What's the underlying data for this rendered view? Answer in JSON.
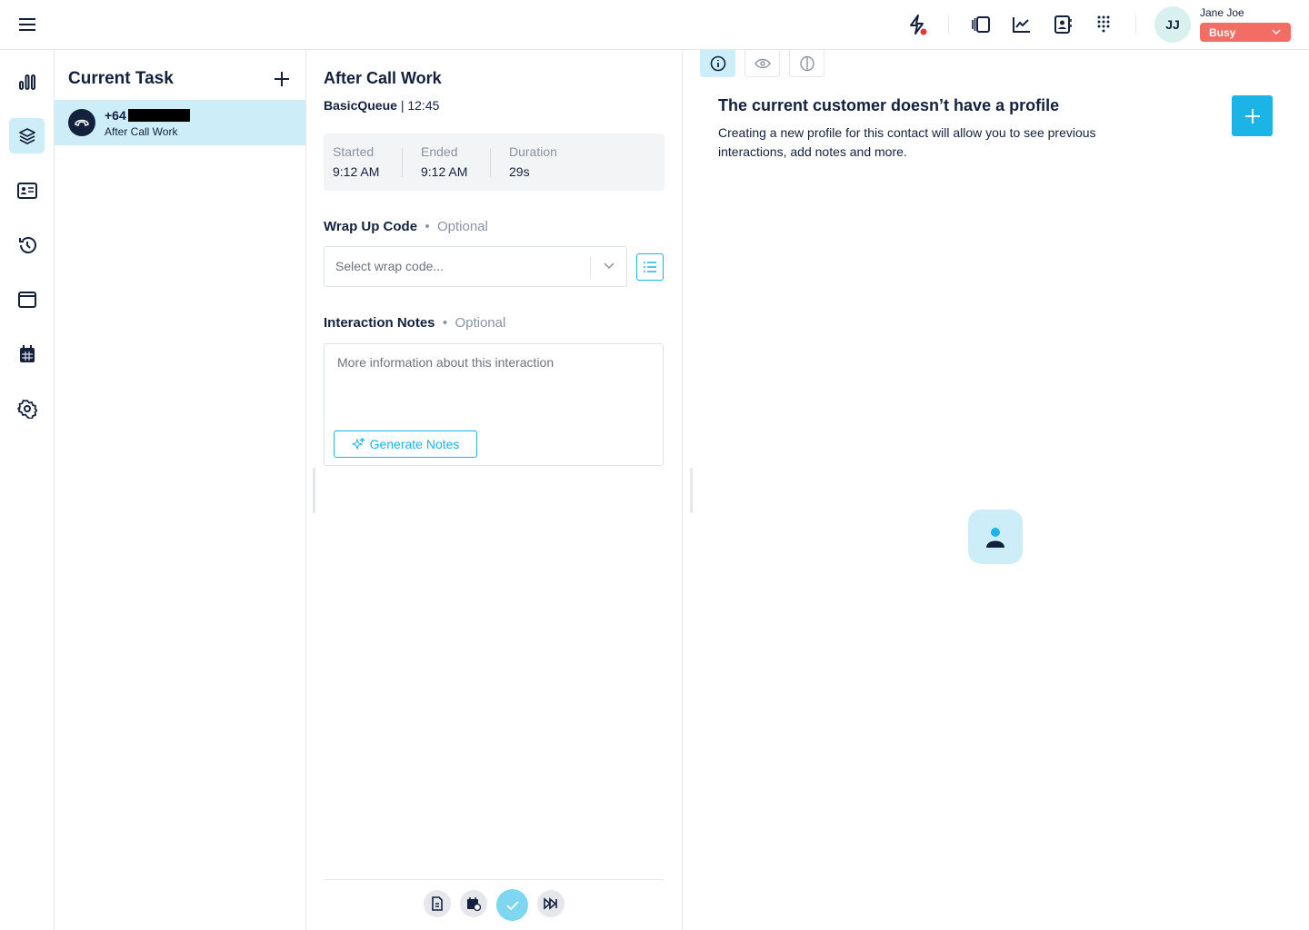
{
  "topbar": {
    "user_name": "Jane Joe",
    "initials": "JJ",
    "status": "Busy",
    "status_color": "#f26d64",
    "accent": "#1ab5e6"
  },
  "rail": {
    "items": [
      "stats",
      "tasks",
      "contacts",
      "history",
      "browser",
      "calendar",
      "settings"
    ],
    "active": "tasks"
  },
  "tasks": {
    "title": "Current Task",
    "items": [
      {
        "number": "+64",
        "status": "After Call Work"
      }
    ]
  },
  "acw": {
    "title": "After Call Work",
    "queue": "BasicQueue",
    "time": "12:45",
    "stats": [
      {
        "label": "Started",
        "value": "9:12 AM"
      },
      {
        "label": "Ended",
        "value": "9:12 AM"
      },
      {
        "label": "Duration",
        "value": "29s"
      }
    ],
    "wrap_label": "Wrap Up Code",
    "optional": "Optional",
    "wrap_placeholder": "Select wrap code...",
    "notes_label": "Interaction Notes",
    "notes_placeholder": "More information about this interaction",
    "generate": "Generate Notes"
  },
  "profile": {
    "title": "The current customer doesn’t have a profile",
    "desc": "Creating a new profile for this contact will allow you to see previous interactions, add notes and more."
  }
}
